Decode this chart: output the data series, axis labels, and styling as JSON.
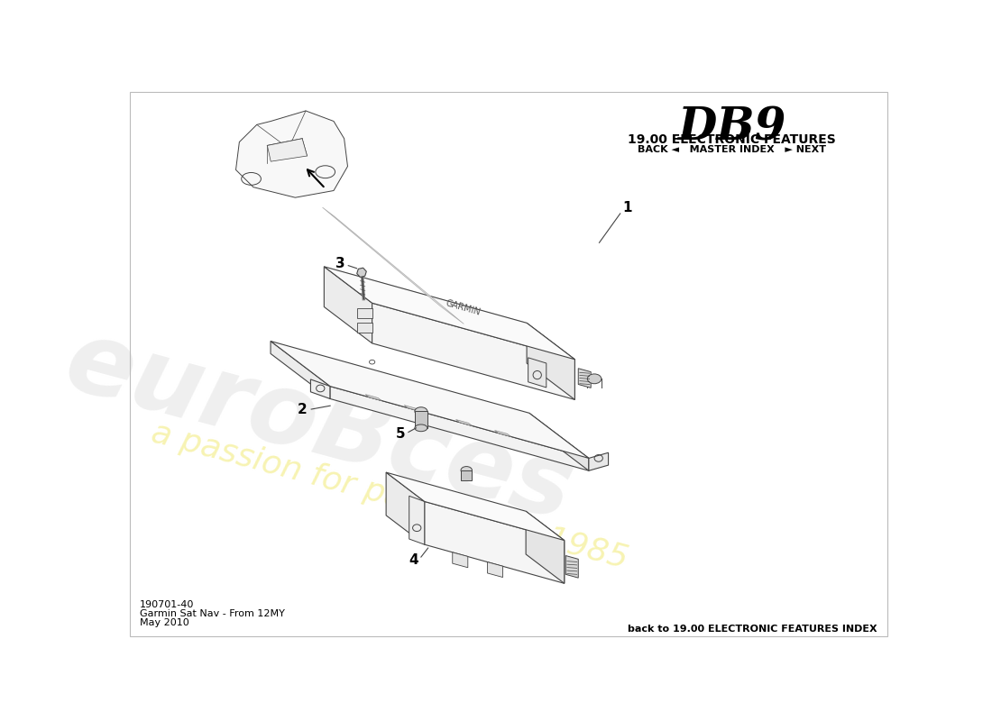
{
  "bg_color": "#ffffff",
  "title_db9": "DB9",
  "title_section": "19.00 ELECTRONIC FEATURES",
  "nav_text": "BACK ◄   MASTER INDEX   ► NEXT",
  "part_number": "190701-40",
  "part_name": "Garmin Sat Nav - From 12MY",
  "date": "May 2010",
  "footer_right": "back to 19.00 ELECTRONIC FEATURES INDEX",
  "line_color": "#444444",
  "fill_top": "#f8f8f8",
  "fill_side": "#e8e8e8",
  "fill_front": "#f0f0f0"
}
